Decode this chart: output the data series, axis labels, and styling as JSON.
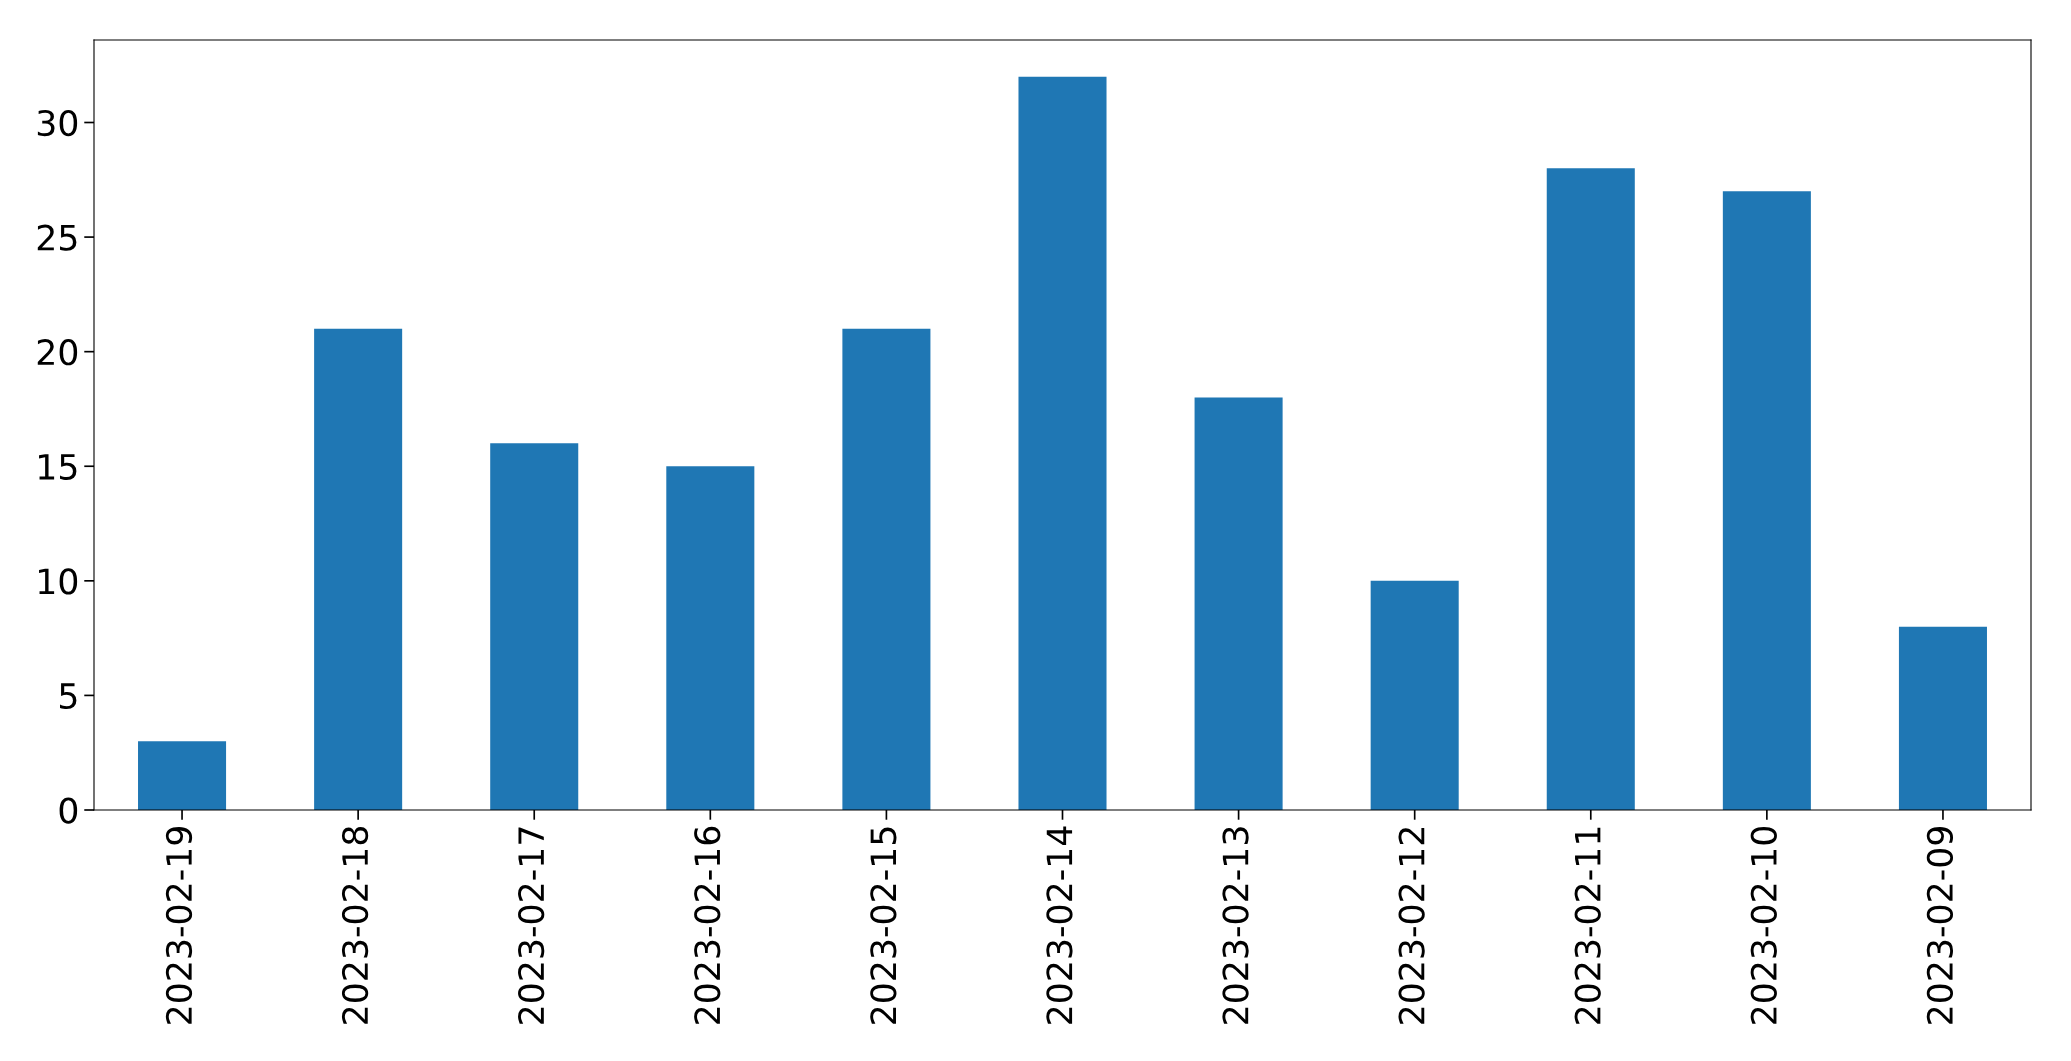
{
  "chart_data": {
    "type": "bar",
    "categories": [
      "2023-02-19",
      "2023-02-18",
      "2023-02-17",
      "2023-02-16",
      "2023-02-15",
      "2023-02-14",
      "2023-02-13",
      "2023-02-12",
      "2023-02-11",
      "2023-02-10",
      "2023-02-09"
    ],
    "values": [
      3,
      21,
      16,
      15,
      21,
      32,
      18,
      10,
      28,
      27,
      8
    ],
    "color": "#1f77b4",
    "ylim": [
      0,
      33.6
    ],
    "yticks": [
      0,
      5,
      10,
      15,
      20,
      25,
      30
    ]
  }
}
